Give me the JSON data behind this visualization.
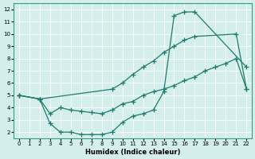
{
  "xlabel": "Humidex (Indice chaleur)",
  "xlim": [
    -0.5,
    22.5
  ],
  "ylim": [
    1.5,
    12.5
  ],
  "xticks": [
    0,
    1,
    2,
    3,
    4,
    5,
    6,
    7,
    8,
    9,
    10,
    11,
    12,
    13,
    14,
    15,
    16,
    17,
    18,
    19,
    20,
    21,
    22
  ],
  "yticks": [
    2,
    3,
    4,
    5,
    6,
    7,
    8,
    9,
    10,
    11,
    12
  ],
  "bg_color": "#d4eeeb",
  "line_color": "#1e7b6e",
  "line1_x": [
    0,
    2,
    9,
    10,
    11,
    12,
    13,
    14,
    15,
    16,
    17,
    21,
    22
  ],
  "line1_y": [
    5.0,
    4.7,
    5.5,
    6.0,
    6.7,
    7.3,
    7.8,
    8.5,
    9.0,
    9.5,
    9.8,
    10.0,
    5.5
  ],
  "line2_x": [
    0,
    2,
    3,
    4,
    5,
    6,
    7,
    8,
    9,
    10,
    11,
    12,
    13,
    14,
    15,
    16,
    17,
    18,
    19,
    20,
    21,
    22
  ],
  "line2_y": [
    5.0,
    4.7,
    3.5,
    4.0,
    3.8,
    3.7,
    3.6,
    3.5,
    3.8,
    4.3,
    4.5,
    5.0,
    5.3,
    5.5,
    5.8,
    6.2,
    6.5,
    7.0,
    7.3,
    7.6,
    8.0,
    5.5
  ],
  "line3_x": [
    0,
    2,
    3,
    4,
    5,
    6,
    7,
    8,
    9,
    10,
    11,
    12,
    13,
    14,
    15,
    16,
    17,
    22
  ],
  "line3_y": [
    5.0,
    4.7,
    2.7,
    2.0,
    2.0,
    1.8,
    1.8,
    1.8,
    2.0,
    2.8,
    3.3,
    3.5,
    3.8,
    5.3,
    11.5,
    11.8,
    11.8,
    7.3
  ]
}
